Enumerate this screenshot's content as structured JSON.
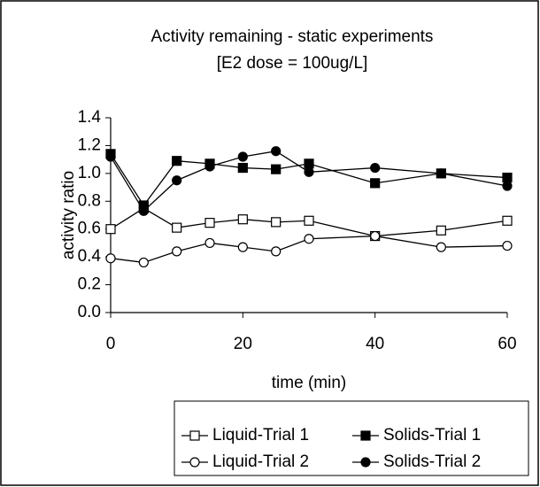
{
  "chart_data": {
    "type": "line",
    "title": "Activity remaining - static experiments",
    "subtitle": "[E2 dose = 100ug/L]",
    "x_label": "time (min)",
    "y_label": "activity ratio",
    "x": [
      0,
      5,
      10,
      15,
      20,
      25,
      30,
      40,
      50,
      60
    ],
    "xlim": [
      0,
      60
    ],
    "xticks": [
      0,
      20,
      40,
      60
    ],
    "ylim": [
      0,
      1.4
    ],
    "yticks": [
      {
        "value": 0,
        "label": "0.0"
      },
      0.2,
      0.4,
      0.6,
      0.8,
      {
        "value": 1,
        "label": "1.0"
      },
      1.2,
      1.4
    ],
    "grid": false,
    "series": [
      {
        "name": "Liquid-Trial 1",
        "color": "#000000",
        "marker": "square",
        "filled": false,
        "values": [
          0.6,
          0.75,
          0.61,
          0.645,
          0.67,
          0.65,
          0.66,
          0.55,
          0.59,
          0.66
        ]
      },
      {
        "name": "Solids-Trial 1",
        "color": "#000000",
        "marker": "square",
        "filled": true,
        "values": [
          1.14,
          0.77,
          1.09,
          1.07,
          1.04,
          1.03,
          1.07,
          0.93,
          1.0,
          0.97
        ]
      },
      {
        "name": "Liquid-Trial 2",
        "color": "#000000",
        "marker": "circle",
        "filled": false,
        "values": [
          0.39,
          0.36,
          0.44,
          0.5,
          0.47,
          0.44,
          0.53,
          0.55,
          0.47,
          0.48
        ]
      },
      {
        "name": "Solids-Trial 2",
        "color": "#000000",
        "marker": "circle",
        "filled": true,
        "values": [
          1.12,
          0.73,
          0.95,
          1.05,
          1.12,
          1.16,
          1.01,
          1.04,
          1.0,
          0.91
        ]
      }
    ]
  }
}
